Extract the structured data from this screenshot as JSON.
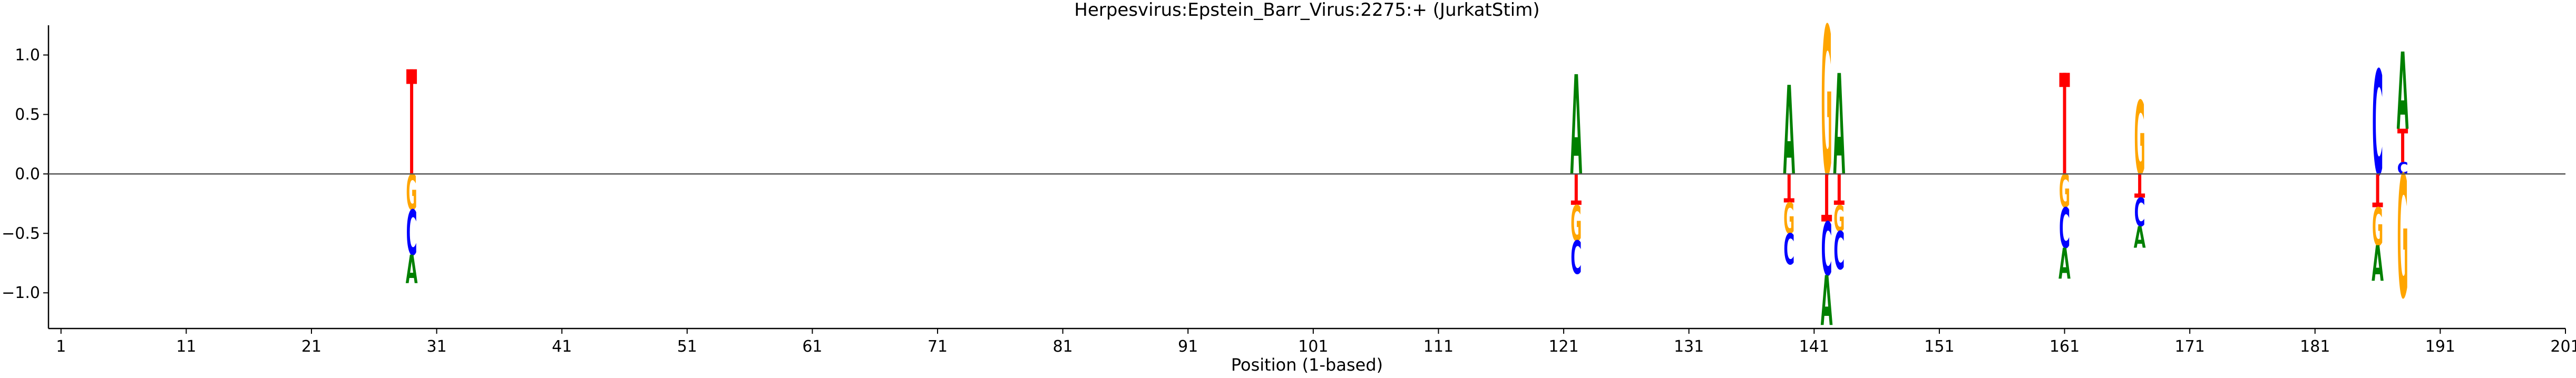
{
  "chart_data": {
    "type": "sequence-logo",
    "title": "Herpesvirus:Epstein_Barr_Virus:2275:+  (JurkatStim)",
    "xlabel": "Position (1-based)",
    "ylabel": "",
    "xlim": [
      0,
      201
    ],
    "ylim": [
      -1.3,
      1.25
    ],
    "x_ticks": [
      1,
      11,
      21,
      31,
      41,
      51,
      61,
      71,
      81,
      91,
      101,
      111,
      121,
      131,
      141,
      151,
      161,
      171,
      181,
      191,
      201
    ],
    "x_tick_labels": [
      "1",
      "11",
      "21",
      "31",
      "41",
      "51",
      "61",
      "71",
      "81",
      "91",
      "101",
      "111",
      "121",
      "131",
      "141",
      "151",
      "161",
      "171",
      "181",
      "191",
      "201"
    ],
    "y_ticks": [
      -1.0,
      -0.5,
      0.0,
      0.5,
      1.0
    ],
    "y_tick_labels": [
      "−1.0",
      "−0.5",
      "0.0",
      "0.5",
      "1.0"
    ],
    "grid": false,
    "base_colors": {
      "A": "#008000",
      "C": "#0000ff",
      "G": "#ffa500",
      "T": "#ff0000"
    },
    "positions": [
      {
        "pos": 29,
        "stack": [
          {
            "base": "T",
            "y0": 0.0,
            "y1": 0.88
          },
          {
            "base": "G",
            "y0": 0.0,
            "y1": -0.3
          },
          {
            "base": "C",
            "y0": -0.3,
            "y1": -0.68
          },
          {
            "base": "A",
            "y0": -0.68,
            "y1": -0.92
          }
        ]
      },
      {
        "pos": 122,
        "stack": [
          {
            "base": "A",
            "y0": 0.0,
            "y1": 0.84
          },
          {
            "base": "T",
            "y0": 0.0,
            "y1": -0.26
          },
          {
            "base": "G",
            "y0": -0.26,
            "y1": -0.56
          },
          {
            "base": "C",
            "y0": -0.56,
            "y1": -0.84
          }
        ]
      },
      {
        "pos": 139,
        "stack": [
          {
            "base": "A",
            "y0": 0.0,
            "y1": 0.75
          },
          {
            "base": "T",
            "y0": 0.0,
            "y1": -0.24
          },
          {
            "base": "G",
            "y0": -0.24,
            "y1": -0.5
          },
          {
            "base": "C",
            "y0": -0.5,
            "y1": -0.76
          }
        ]
      },
      {
        "pos": 142,
        "stack": [
          {
            "base": "G",
            "y0": 0.0,
            "y1": 1.25
          },
          {
            "base": "T",
            "y0": 0.0,
            "y1": -0.4
          },
          {
            "base": "C",
            "y0": -0.4,
            "y1": -0.85
          },
          {
            "base": "A",
            "y0": -0.85,
            "y1": -1.27
          }
        ]
      },
      {
        "pos": 143,
        "stack": [
          {
            "base": "A",
            "y0": 0.0,
            "y1": 0.85
          },
          {
            "base": "T",
            "y0": 0.0,
            "y1": -0.26
          },
          {
            "base": "G",
            "y0": -0.26,
            "y1": -0.48
          },
          {
            "base": "C",
            "y0": -0.48,
            "y1": -0.8
          }
        ]
      },
      {
        "pos": 161,
        "stack": [
          {
            "base": "T",
            "y0": 0.0,
            "y1": 0.85
          },
          {
            "base": "G",
            "y0": 0.0,
            "y1": -0.28
          },
          {
            "base": "C",
            "y0": -0.28,
            "y1": -0.62
          },
          {
            "base": "A",
            "y0": -0.62,
            "y1": -0.88
          }
        ]
      },
      {
        "pos": 167,
        "stack": [
          {
            "base": "G",
            "y0": 0.0,
            "y1": 0.62
          },
          {
            "base": "T",
            "y0": 0.0,
            "y1": -0.2
          },
          {
            "base": "C",
            "y0": -0.2,
            "y1": -0.44
          },
          {
            "base": "A",
            "y0": -0.44,
            "y1": -0.62
          }
        ]
      },
      {
        "pos": 186,
        "stack": [
          {
            "base": "C",
            "y0": 0.0,
            "y1": 0.88
          },
          {
            "base": "T",
            "y0": 0.0,
            "y1": -0.28
          },
          {
            "base": "G",
            "y0": -0.28,
            "y1": -0.6
          },
          {
            "base": "A",
            "y0": -0.6,
            "y1": -0.9
          }
        ]
      },
      {
        "pos": 188,
        "stack": [
          {
            "base": "C",
            "y0": 0.0,
            "y1": 0.1
          },
          {
            "base": "T",
            "y0": 0.1,
            "y1": 0.38
          },
          {
            "base": "A",
            "y0": 0.38,
            "y1": 1.03
          },
          {
            "base": "G",
            "y0": 0.0,
            "y1": -1.03
          }
        ]
      }
    ]
  }
}
